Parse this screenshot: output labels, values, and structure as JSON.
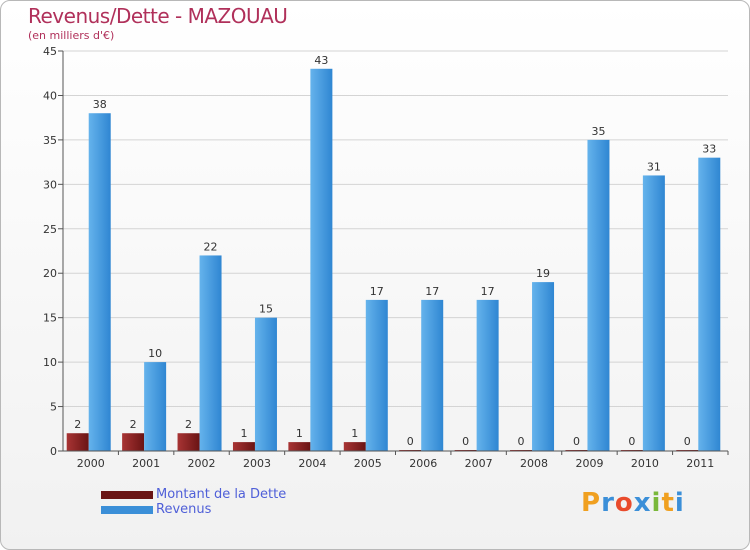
{
  "title": "Revenus/Dette - MAZOUAU",
  "subtitle": "(en milliers d'€)",
  "brand": "Proxiti",
  "colors": {
    "title": "#b0305a",
    "debt": "#7a1c1c",
    "debt_light": "#a03030",
    "revenue": "#3b8fd8",
    "revenue_light": "#5aaae8",
    "legend_text": "#4f5fd8",
    "grid": "#d0d0d0"
  },
  "legend": [
    {
      "label": "Montant de la Dette",
      "color": "#7a1c1c"
    },
    {
      "label": "Revenus",
      "color": "#3b8fd8"
    }
  ],
  "chart_data": {
    "type": "bar",
    "title": "Revenus/Dette - MAZOUAU",
    "ylabel": "(en milliers d'€)",
    "xlabel": "",
    "categories": [
      "2000",
      "2001",
      "2002",
      "2003",
      "2004",
      "2005",
      "2006",
      "2007",
      "2008",
      "2009",
      "2010",
      "2011"
    ],
    "series": [
      {
        "name": "Montant de la Dette",
        "values": [
          2,
          2,
          2,
          1,
          1,
          1,
          0,
          0,
          0,
          0,
          0,
          0
        ]
      },
      {
        "name": "Revenus",
        "values": [
          38,
          10,
          22,
          15,
          43,
          17,
          17,
          17,
          19,
          35,
          31,
          33
        ]
      }
    ],
    "ylim": [
      0,
      45
    ],
    "yticks": [
      0,
      5,
      10,
      15,
      20,
      25,
      30,
      35,
      40,
      45
    ],
    "grid": true
  }
}
